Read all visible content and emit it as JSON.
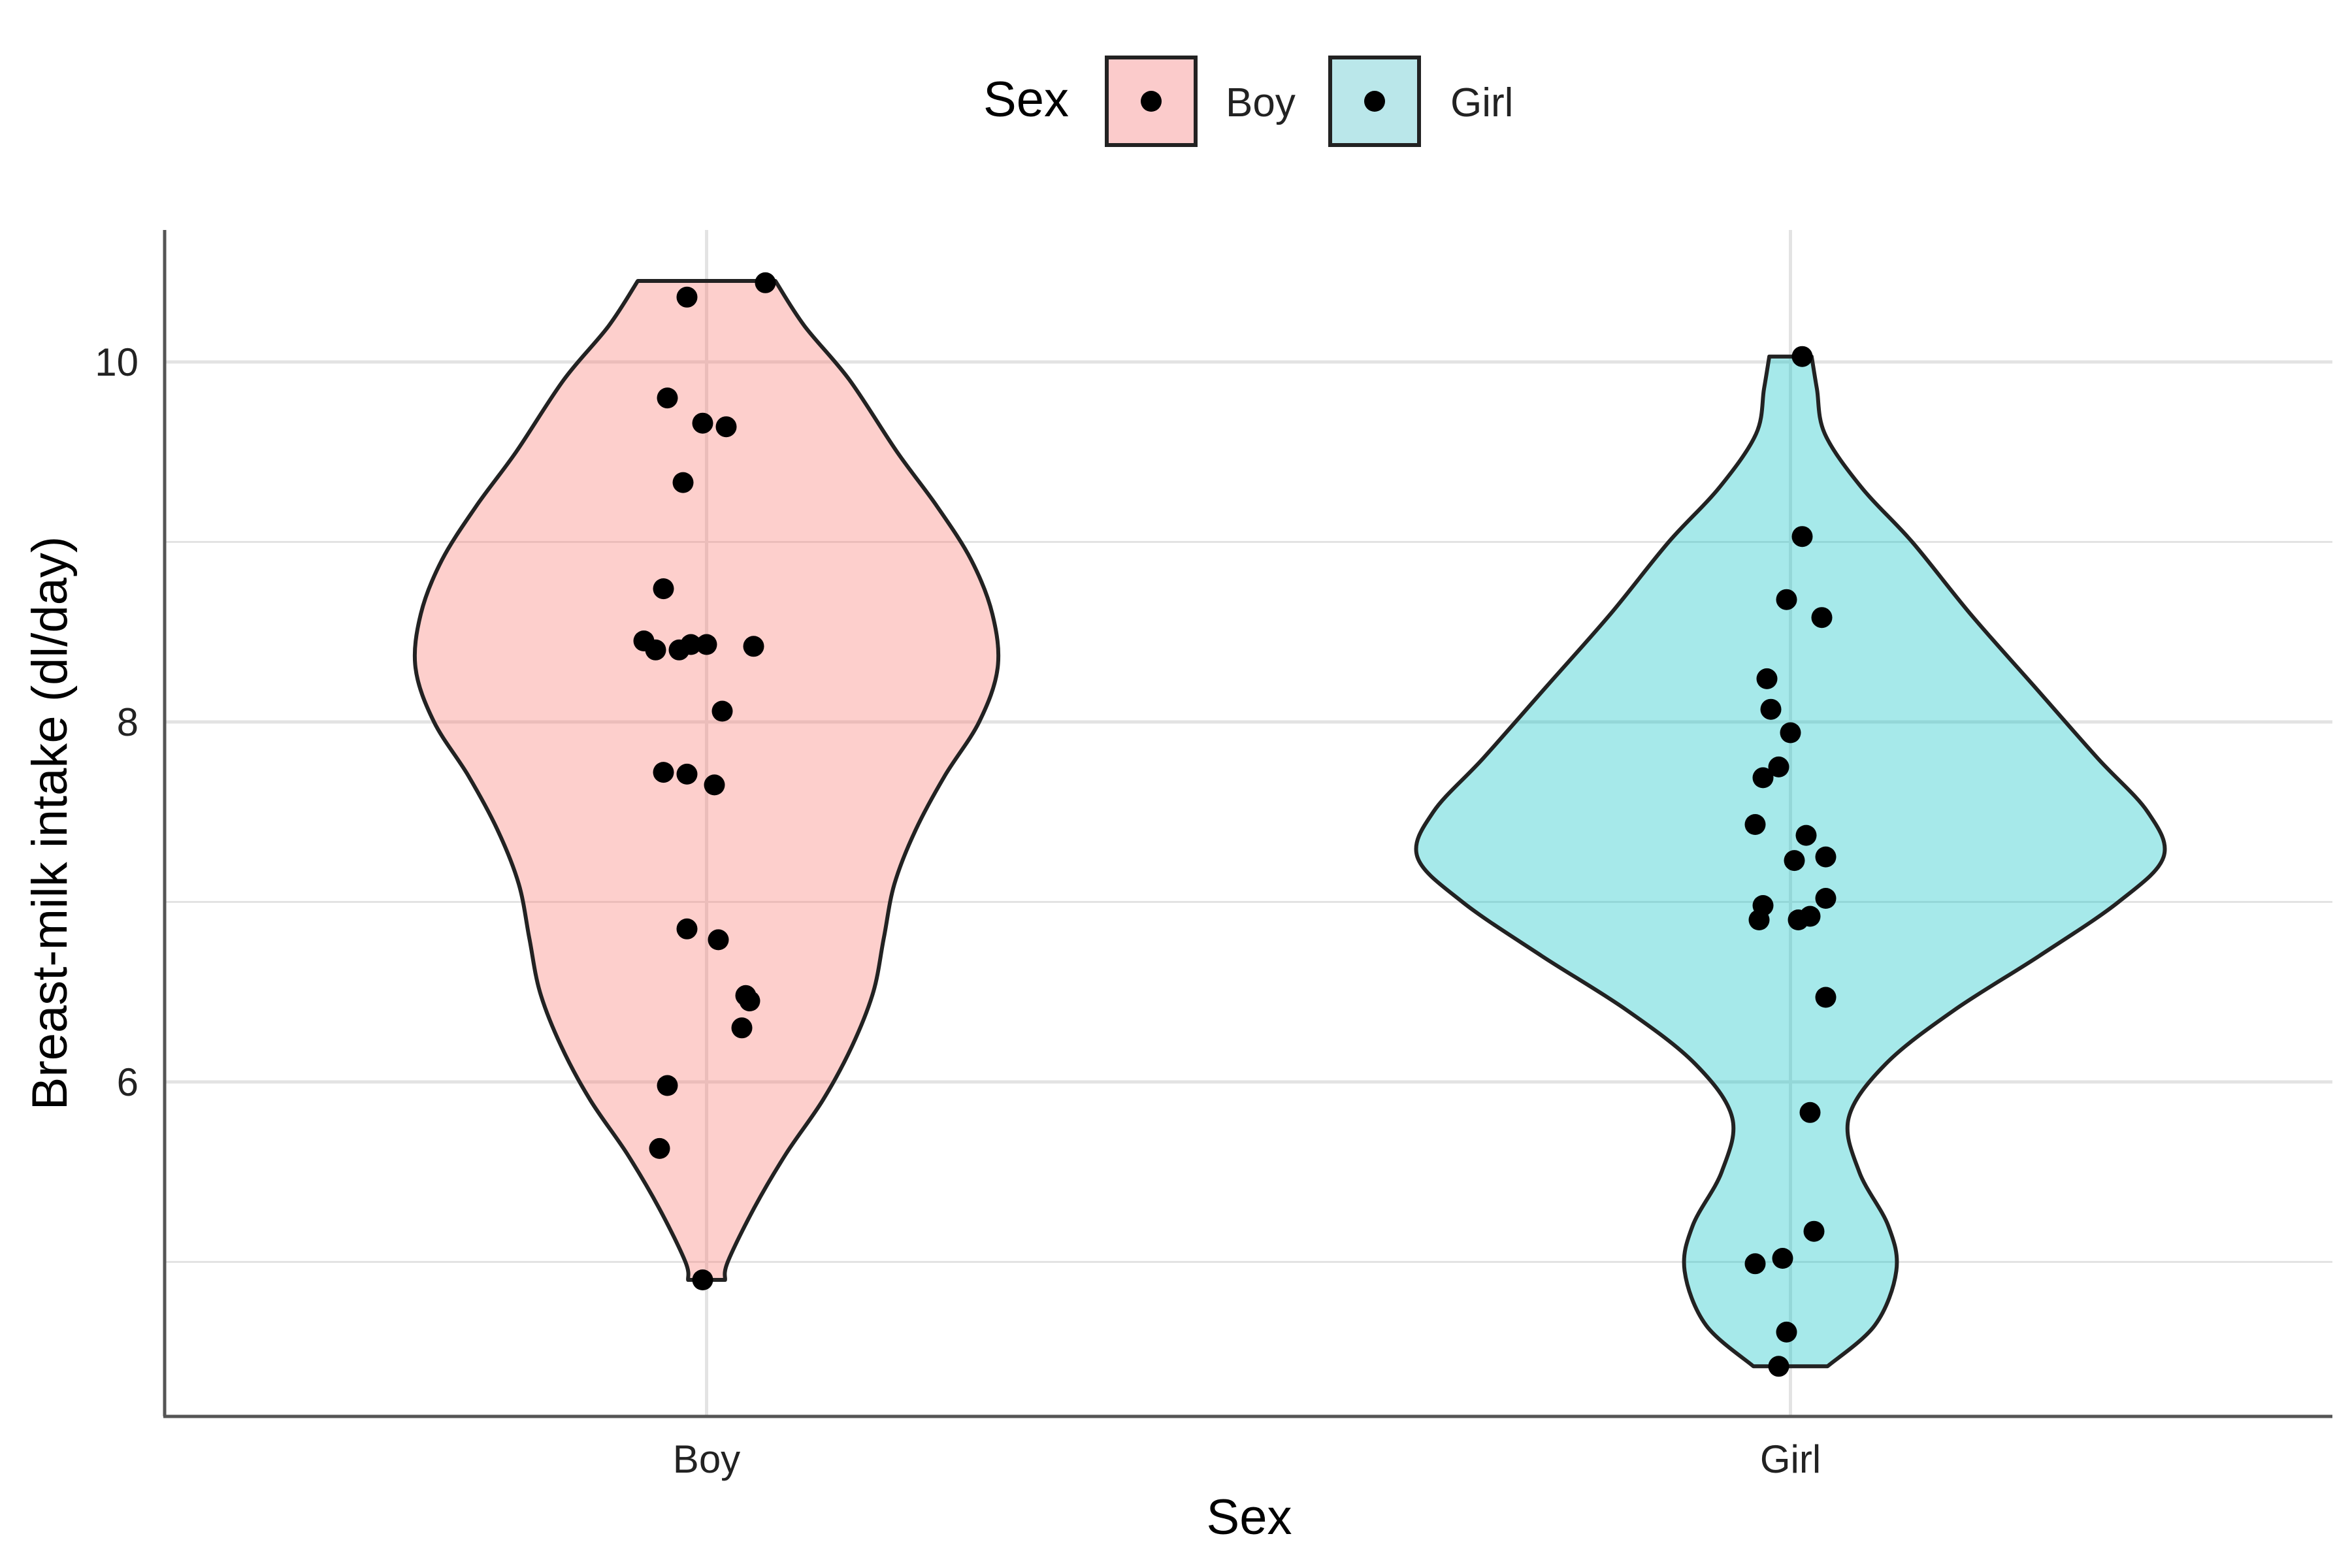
{
  "chart_data": {
    "type": "violin",
    "xlabel": "Sex",
    "ylabel": "Breast-milk intake (dl/day)",
    "categories": [
      "Boy",
      "Girl"
    ],
    "y_ticks": [
      "6",
      "8",
      "10"
    ],
    "ylim": [
      4.2,
      10.7
    ],
    "grid": true,
    "legend": {
      "title": "Sex",
      "position": "top",
      "entries": [
        "Boy",
        "Girl"
      ]
    },
    "colors": {
      "Boy": "#f8766d",
      "Girl": "#00bfc4",
      "points": "#000000",
      "outline": "#222222"
    },
    "series": [
      {
        "category": "Boy",
        "range": [
          4.9,
          10.45
        ],
        "density_profile": [
          [
            10.45,
            0.26
          ],
          [
            10.2,
            0.37
          ],
          [
            9.9,
            0.54
          ],
          [
            9.5,
            0.72
          ],
          [
            9.2,
            0.87
          ],
          [
            8.9,
            1.0
          ],
          [
            8.6,
            1.08
          ],
          [
            8.3,
            1.1
          ],
          [
            8.0,
            1.03
          ],
          [
            7.7,
            0.9
          ],
          [
            7.4,
            0.79
          ],
          [
            7.1,
            0.71
          ],
          [
            6.8,
            0.67
          ],
          [
            6.5,
            0.63
          ],
          [
            6.2,
            0.55
          ],
          [
            5.9,
            0.44
          ],
          [
            5.6,
            0.3
          ],
          [
            5.3,
            0.18
          ],
          [
            5.0,
            0.08
          ],
          [
            4.9,
            0.07
          ]
        ],
        "points": [
          [
            -0.05,
            10.36
          ],
          [
            0.15,
            10.44
          ],
          [
            -0.1,
            9.8
          ],
          [
            -0.01,
            9.66
          ],
          [
            0.05,
            9.64
          ],
          [
            -0.06,
            9.33
          ],
          [
            -0.11,
            8.74
          ],
          [
            -0.16,
            8.45
          ],
          [
            -0.13,
            8.4
          ],
          [
            -0.07,
            8.4
          ],
          [
            -0.04,
            8.43
          ],
          [
            0.0,
            8.43
          ],
          [
            0.12,
            8.42
          ],
          [
            0.04,
            8.06
          ],
          [
            -0.11,
            7.72
          ],
          [
            -0.05,
            7.71
          ],
          [
            0.02,
            7.65
          ],
          [
            -0.05,
            6.85
          ],
          [
            0.03,
            6.79
          ],
          [
            0.1,
            6.48
          ],
          [
            0.11,
            6.45
          ],
          [
            0.09,
            6.3
          ],
          [
            -0.1,
            5.98
          ],
          [
            -0.12,
            5.63
          ],
          [
            -0.01,
            4.9
          ]
        ]
      },
      {
        "category": "Girl",
        "range": [
          4.42,
          10.03
        ],
        "density_profile": [
          [
            10.03,
            0.08
          ],
          [
            9.85,
            0.1
          ],
          [
            9.6,
            0.13
          ],
          [
            9.3,
            0.27
          ],
          [
            9.0,
            0.46
          ],
          [
            8.6,
            0.68
          ],
          [
            8.2,
            0.92
          ],
          [
            7.8,
            1.16
          ],
          [
            7.5,
            1.35
          ],
          [
            7.25,
            1.41
          ],
          [
            7.0,
            1.24
          ],
          [
            6.7,
            0.94
          ],
          [
            6.4,
            0.62
          ],
          [
            6.1,
            0.36
          ],
          [
            5.8,
            0.22
          ],
          [
            5.5,
            0.26
          ],
          [
            5.2,
            0.37
          ],
          [
            4.95,
            0.4
          ],
          [
            4.65,
            0.32
          ],
          [
            4.42,
            0.14
          ]
        ],
        "points": [
          [
            0.03,
            10.03
          ],
          [
            0.03,
            9.03
          ],
          [
            -0.01,
            8.68
          ],
          [
            0.08,
            8.58
          ],
          [
            -0.06,
            8.24
          ],
          [
            -0.05,
            8.07
          ],
          [
            0.0,
            7.94
          ],
          [
            -0.03,
            7.75
          ],
          [
            -0.07,
            7.69
          ],
          [
            -0.09,
            7.43
          ],
          [
            0.04,
            7.37
          ],
          [
            0.01,
            7.23
          ],
          [
            0.09,
            7.25
          ],
          [
            -0.07,
            6.98
          ],
          [
            -0.08,
            6.9
          ],
          [
            0.02,
            6.9
          ],
          [
            0.05,
            6.92
          ],
          [
            0.09,
            7.02
          ],
          [
            0.09,
            6.47
          ],
          [
            0.05,
            5.83
          ],
          [
            0.06,
            5.17
          ],
          [
            -0.09,
            4.99
          ],
          [
            -0.02,
            5.02
          ],
          [
            -0.01,
            4.61
          ],
          [
            -0.03,
            4.42
          ]
        ]
      }
    ]
  }
}
